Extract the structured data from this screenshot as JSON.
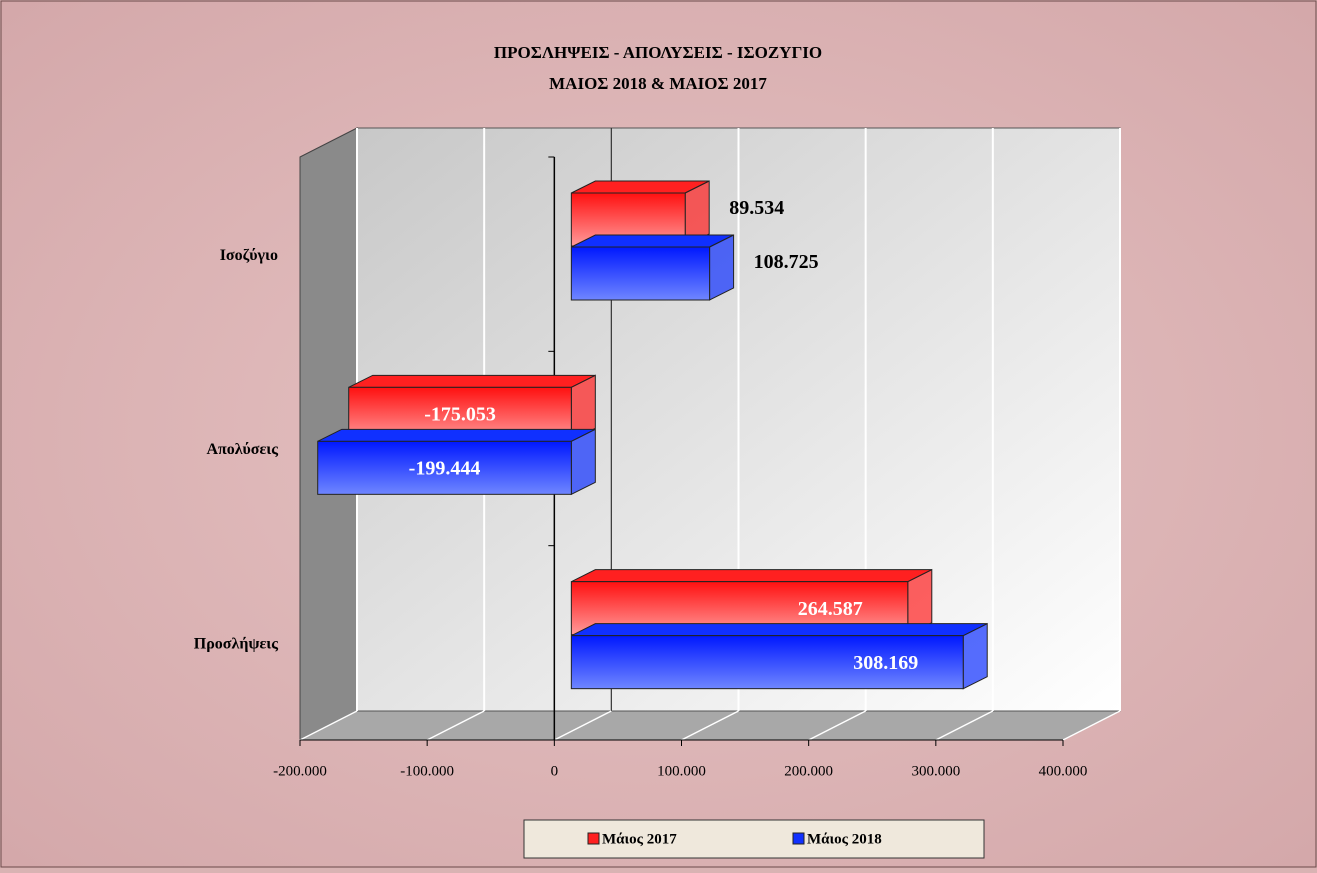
{
  "chart_data": {
    "type": "bar3d_horizontal",
    "title": "ΠΡΟΣΛΗΨΕΙΣ - ΑΠΟΛΥΣΕΙΣ - ΙΣΟΖΥΓΙΟ",
    "subtitle": "ΜΑΙΟΣ 2018 & ΜΑΙΟΣ 2017",
    "categories": [
      "Προσλήψεις",
      "Απολύσεις",
      "Ισοζύγιο"
    ],
    "series": [
      {
        "name": "Μάιος 2017",
        "color": "#ff2020",
        "values": [
          264587,
          -175053,
          89534
        ],
        "value_labels": [
          "264.587",
          "-175.053",
          "89.534"
        ]
      },
      {
        "name": "Μάιος 2018",
        "color": "#1030ff",
        "values": [
          308169,
          -199444,
          108725
        ],
        "value_labels": [
          "308.169",
          "-199.444",
          "108.725"
        ]
      }
    ],
    "xlim": [
      -200000,
      400000
    ],
    "xticks": [
      {
        "value": -200000,
        "label": "-200.000"
      },
      {
        "value": -100000,
        "label": "-100.000"
      },
      0,
      {
        "value": 100000,
        "label": "100.000"
      },
      {
        "value": 200000,
        "label": "200.000"
      },
      {
        "value": 300000,
        "label": "300.000"
      },
      {
        "value": 400000,
        "label": "400.000"
      }
    ],
    "grid": true,
    "legend": "bottom"
  }
}
